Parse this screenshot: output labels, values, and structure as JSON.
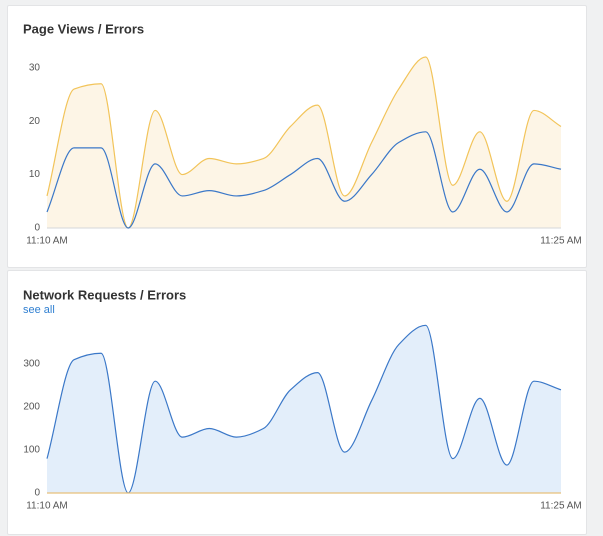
{
  "chart_data": [
    {
      "type": "area",
      "title": "Page Views / Errors",
      "categories": [
        "11:10 AM",
        null,
        null,
        null,
        null,
        null,
        null,
        null,
        null,
        null,
        null,
        null,
        null,
        null,
        null,
        null,
        null,
        null,
        null,
        "11:25 AM"
      ],
      "series": [
        {
          "color": "#f2c45a",
          "fill": "#fdf5e6",
          "values": [
            6,
            26,
            27,
            0,
            22,
            10,
            13,
            12,
            13,
            19,
            23,
            6,
            16,
            26,
            32,
            8,
            18,
            5,
            22,
            19
          ]
        },
        {
          "color": "#3b78c8",
          "fill": "#e8e9ea",
          "values": [
            3,
            15,
            15,
            0,
            12,
            6,
            7,
            6,
            7,
            10,
            13,
            5,
            10,
            16,
            18,
            3,
            11,
            3,
            12,
            11
          ]
        }
      ],
      "ylim": [
        0,
        32
      ],
      "yticks": [
        0,
        10,
        20,
        30
      ]
    },
    {
      "type": "area",
      "title": "Network Requests / Errors",
      "link": "see all",
      "categories": [
        "11:10 AM",
        null,
        null,
        null,
        null,
        null,
        null,
        null,
        null,
        null,
        null,
        null,
        null,
        null,
        null,
        null,
        null,
        null,
        null,
        "11:25 AM"
      ],
      "series": [
        {
          "color": "#3b78c8",
          "fill": "#e3eefa",
          "values": [
            80,
            310,
            325,
            0,
            260,
            130,
            150,
            130,
            150,
            240,
            280,
            95,
            215,
            345,
            390,
            80,
            220,
            65,
            260,
            240
          ]
        },
        {
          "color": "#e8c07a",
          "fill": "none",
          "values": [
            0,
            0,
            0,
            0,
            0,
            0,
            0,
            0,
            0,
            0,
            0,
            0,
            0,
            0,
            0,
            0,
            0,
            0,
            0,
            0
          ]
        }
      ],
      "ylim": [
        0,
        400
      ],
      "yticks": [
        0,
        100,
        200,
        300
      ]
    }
  ]
}
